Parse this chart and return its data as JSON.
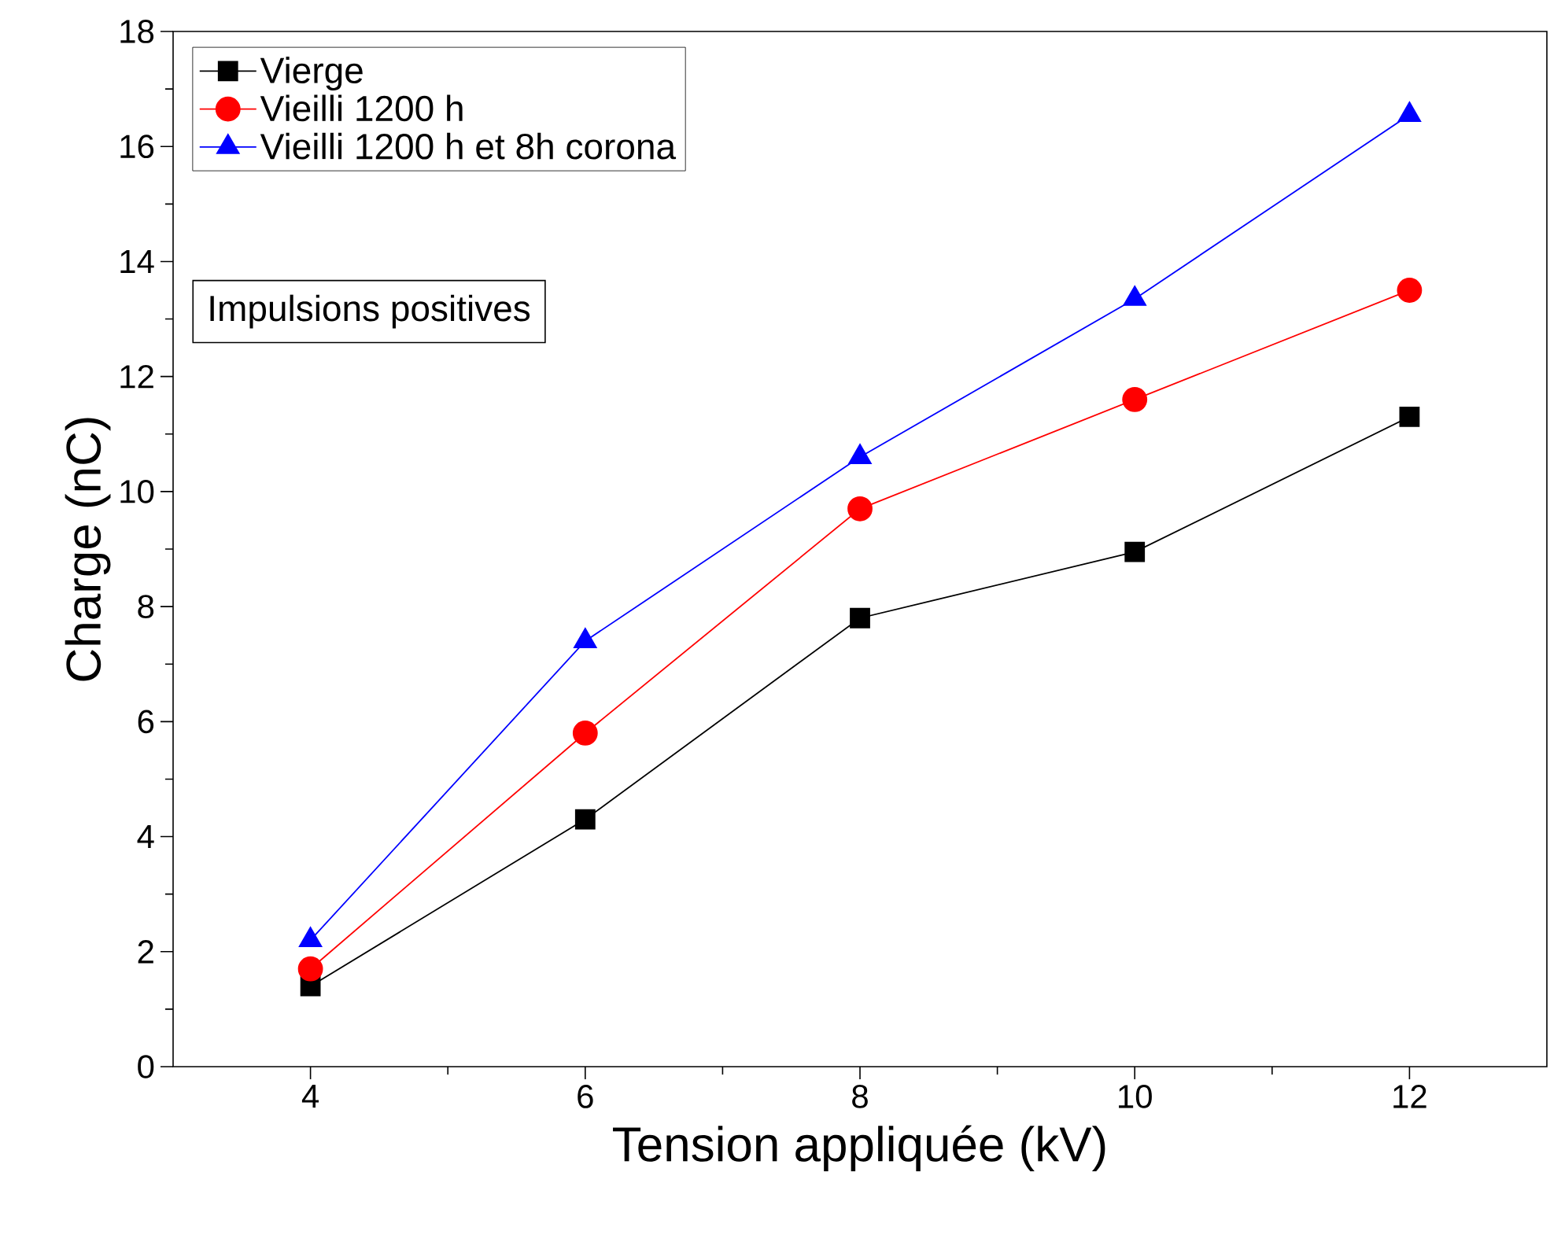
{
  "chart_data": {
    "type": "line",
    "xlabel": "Tension appliquée (kV)",
    "ylabel": "Charge (nC)",
    "x": [
      4,
      6,
      8,
      10,
      12
    ],
    "series": [
      {
        "name": "Vierge",
        "color": "#000000",
        "marker": "square",
        "values": [
          1.4,
          4.3,
          7.8,
          8.95,
          11.3
        ]
      },
      {
        "name": "Vieilli 1200 h",
        "color": "#ff0000",
        "marker": "circle",
        "values": [
          1.7,
          5.8,
          9.7,
          11.6,
          13.5
        ]
      },
      {
        "name": "Vieilli 1200 h et 8h corona",
        "color": "#0000ff",
        "marker": "triangle",
        "values": [
          2.2,
          7.4,
          10.6,
          13.35,
          16.55
        ]
      }
    ],
    "xlim": [
      3,
      13
    ],
    "ylim": [
      0,
      18
    ],
    "xticks": [
      4,
      6,
      8,
      10,
      12
    ],
    "yticks": [
      0,
      2,
      4,
      6,
      8,
      10,
      12,
      14,
      16,
      18
    ],
    "grid": false,
    "legend": "top left",
    "line_style": "solid",
    "annotations": [
      "Impulsions positives"
    ]
  }
}
